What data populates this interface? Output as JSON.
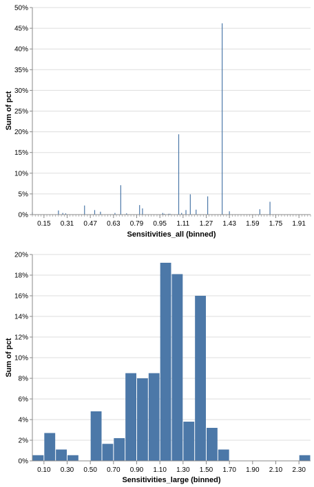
{
  "chart_data": [
    {
      "type": "bar",
      "xlabel": "Sensitivities_all (binned)",
      "ylabel": "Sum of pct",
      "x_tick_labels": [
        "0.15",
        "0.31",
        "0.47",
        "0.63",
        "0.79",
        "0.95",
        "1.11",
        "1.27",
        "1.43",
        "1.59",
        "1.75",
        "1.91"
      ],
      "y_tick_labels": [
        "0%",
        "5%",
        "10%",
        "15%",
        "20%",
        "25%",
        "30%",
        "35%",
        "40%",
        "45%",
        "50%"
      ],
      "xlim": [
        0.07,
        1.99
      ],
      "ylim": [
        0,
        0.5
      ],
      "grid": true,
      "bars": [
        {
          "x": 0.07,
          "value": 0.006
        },
        {
          "x": 0.25,
          "value": 0.01
        },
        {
          "x": 0.28,
          "value": 0.004
        },
        {
          "x": 0.3,
          "value": 0.003
        },
        {
          "x": 0.43,
          "value": 0.022
        },
        {
          "x": 0.5,
          "value": 0.011
        },
        {
          "x": 0.54,
          "value": 0.007
        },
        {
          "x": 0.64,
          "value": 0.004
        },
        {
          "x": 0.68,
          "value": 0.071
        },
        {
          "x": 0.72,
          "value": 0.003
        },
        {
          "x": 0.81,
          "value": 0.023
        },
        {
          "x": 0.83,
          "value": 0.015
        },
        {
          "x": 0.97,
          "value": 0.004
        },
        {
          "x": 0.98,
          "value": 0.002
        },
        {
          "x": 1.01,
          "value": 0.002
        },
        {
          "x": 1.02,
          "value": 0.002
        },
        {
          "x": 1.08,
          "value": 0.194
        },
        {
          "x": 1.1,
          "value": 0.004
        },
        {
          "x": 1.13,
          "value": 0.011
        },
        {
          "x": 1.16,
          "value": 0.049
        },
        {
          "x": 1.2,
          "value": 0.012
        },
        {
          "x": 1.28,
          "value": 0.044
        },
        {
          "x": 1.38,
          "value": 0.462
        },
        {
          "x": 1.43,
          "value": 0.008
        },
        {
          "x": 1.64,
          "value": 0.013
        },
        {
          "x": 1.71,
          "value": 0.031
        }
      ]
    },
    {
      "type": "bar",
      "xlabel": "Sensitivities_large (binned)",
      "ylabel": "Sum of pct",
      "x_tick_labels": [
        "0.10",
        "0.30",
        "0.50",
        "0.70",
        "0.90",
        "1.10",
        "1.30",
        "1.50",
        "1.70",
        "1.90",
        "2.10",
        "2.30"
      ],
      "y_tick_labels": [
        "0%",
        "2%",
        "4%",
        "6%",
        "8%",
        "10%",
        "12%",
        "14%",
        "16%",
        "18%",
        "20%"
      ],
      "xlim": [
        0.0,
        2.4
      ],
      "ylim": [
        0,
        0.2
      ],
      "grid": true,
      "bin_width": 0.1,
      "bars": [
        {
          "x0": 0.0,
          "value": 0.0055
        },
        {
          "x0": 0.1,
          "value": 0.027
        },
        {
          "x0": 0.2,
          "value": 0.011
        },
        {
          "x0": 0.3,
          "value": 0.0055
        },
        {
          "x0": 0.5,
          "value": 0.048
        },
        {
          "x0": 0.6,
          "value": 0.0165
        },
        {
          "x0": 0.7,
          "value": 0.022
        },
        {
          "x0": 0.8,
          "value": 0.085
        },
        {
          "x0": 0.9,
          "value": 0.08
        },
        {
          "x0": 1.0,
          "value": 0.085
        },
        {
          "x0": 1.1,
          "value": 0.192
        },
        {
          "x0": 1.2,
          "value": 0.181
        },
        {
          "x0": 1.3,
          "value": 0.038
        },
        {
          "x0": 1.4,
          "value": 0.16
        },
        {
          "x0": 1.5,
          "value": 0.032
        },
        {
          "x0": 1.6,
          "value": 0.011
        },
        {
          "x0": 2.3,
          "value": 0.0055
        }
      ]
    }
  ],
  "colors": {
    "bar": "#4c78a8",
    "grid": "#dddddd",
    "axis": "#888888"
  }
}
